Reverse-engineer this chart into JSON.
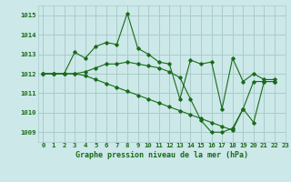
{
  "title": "Graphe pression niveau de la mer (hPa)",
  "background_color": "#cce8e8",
  "grid_color": "#aacccc",
  "line_color": "#1a6b1a",
  "xlim": [
    -0.5,
    23
  ],
  "ylim": [
    1008.5,
    1015.5
  ],
  "xticks": [
    0,
    1,
    2,
    3,
    4,
    5,
    6,
    7,
    8,
    9,
    10,
    11,
    12,
    13,
    14,
    15,
    16,
    17,
    18,
    19,
    20,
    21,
    22,
    23
  ],
  "yticks": [
    1009,
    1010,
    1011,
    1012,
    1013,
    1014,
    1015
  ],
  "series": [
    {
      "x": [
        0,
        1,
        2,
        3,
        4,
        5,
        6,
        7,
        8,
        9,
        10,
        11,
        12,
        13,
        14,
        15,
        16,
        17,
        18,
        19,
        20,
        21,
        22
      ],
      "y": [
        1012.0,
        1012.0,
        1012.0,
        1013.1,
        1012.8,
        1013.4,
        1013.6,
        1013.5,
        1015.1,
        1013.3,
        1013.0,
        1012.6,
        1012.5,
        1010.7,
        1012.7,
        1012.5,
        1012.6,
        1010.2,
        1012.8,
        1011.6,
        1012.0,
        1011.7,
        1011.7
      ]
    },
    {
      "x": [
        0,
        1,
        2,
        3,
        4,
        5,
        6,
        7,
        8,
        9,
        10,
        11,
        12,
        13,
        14,
        15,
        16,
        17,
        18,
        19,
        20,
        21,
        22
      ],
      "y": [
        1012.0,
        1012.0,
        1012.0,
        1012.0,
        1012.1,
        1012.3,
        1012.5,
        1012.5,
        1012.6,
        1012.5,
        1012.4,
        1012.3,
        1012.1,
        1011.8,
        1010.7,
        1009.6,
        1009.0,
        1009.0,
        1009.2,
        1010.2,
        1009.5,
        1011.6,
        1011.6
      ]
    },
    {
      "x": [
        0,
        1,
        2,
        3,
        4,
        5,
        6,
        7,
        8,
        9,
        10,
        11,
        12,
        13,
        14,
        15,
        16,
        17,
        18,
        19,
        20,
        21,
        22
      ],
      "y": [
        1012.0,
        1012.0,
        1012.0,
        1012.0,
        1011.9,
        1011.7,
        1011.5,
        1011.3,
        1011.1,
        1010.9,
        1010.7,
        1010.5,
        1010.3,
        1010.1,
        1009.9,
        1009.7,
        1009.5,
        1009.3,
        1009.1,
        1010.2,
        1011.6,
        1011.6,
        1011.6
      ]
    }
  ],
  "title_fontsize": 6.0,
  "tick_fontsize": 5.2
}
